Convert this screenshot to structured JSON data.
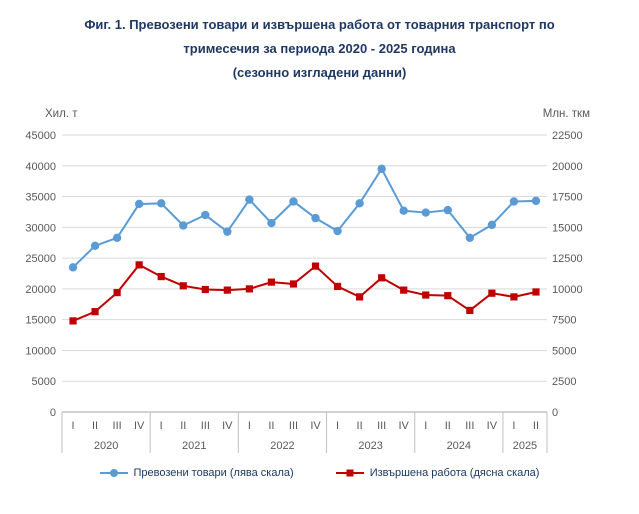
{
  "title": {
    "line1": "Фиг. 1. Превозени товари и извършена работа от товарния транспорт по",
    "line2": "тримесечия за периода 2020 - 2025 година",
    "line3": "(сезонно изгладени данни)"
  },
  "chart_data": {
    "type": "line",
    "left_axis": {
      "label": "Хил. т",
      "min": 0,
      "max": 45000,
      "step": 5000
    },
    "right_axis": {
      "label": "Млн. ткм",
      "min": 0,
      "max": 22500,
      "step": 2500
    },
    "years": [
      {
        "year": "2020",
        "quarters": [
          "I",
          "II",
          "III",
          "IV"
        ]
      },
      {
        "year": "2021",
        "quarters": [
          "I",
          "II",
          "III",
          "IV"
        ]
      },
      {
        "year": "2022",
        "quarters": [
          "I",
          "II",
          "III",
          "IV"
        ]
      },
      {
        "year": "2023",
        "quarters": [
          "I",
          "II",
          "III",
          "IV"
        ]
      },
      {
        "year": "2024",
        "quarters": [
          "I",
          "II",
          "III",
          "IV"
        ]
      },
      {
        "year": "2025",
        "quarters": [
          "I",
          "II"
        ]
      }
    ],
    "grid": true,
    "legend_position": "bottom",
    "series": [
      {
        "name": "Превозени товари (лява скала)",
        "axis": "left",
        "color": "#5B9BD5",
        "marker": "circle",
        "values": [
          23500,
          27000,
          28300,
          33800,
          33900,
          30300,
          32000,
          29300,
          34500,
          30700,
          34200,
          31500,
          29400,
          33900,
          39500,
          32700,
          32400,
          32800,
          28300,
          30400,
          34200,
          34300
        ]
      },
      {
        "name": "Извършена работа (дясна скала)",
        "axis": "right",
        "color": "#C00000",
        "marker": "square",
        "values": [
          7400,
          8150,
          9700,
          11950,
          11000,
          10250,
          9950,
          9900,
          10000,
          10550,
          10400,
          11850,
          10200,
          9350,
          10900,
          9900,
          9500,
          9450,
          8250,
          9650,
          9350,
          9750
        ]
      }
    ]
  }
}
